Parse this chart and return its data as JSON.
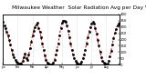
{
  "title": "Milwaukee Weather  Solar Radiation Avg per Day W/m2/minute",
  "title_fontsize": 4.2,
  "background_color": "#ffffff",
  "plot_bg_color": "#ffffff",
  "line_color": "#cc0000",
  "marker_color": "#000000",
  "grid_color": "#bbbbbb",
  "ylim": [
    0,
    400
  ],
  "xlim": [
    0,
    95
  ],
  "x_values": [
    0,
    1,
    2,
    3,
    4,
    5,
    6,
    7,
    8,
    9,
    10,
    11,
    12,
    13,
    14,
    15,
    16,
    17,
    18,
    19,
    20,
    21,
    22,
    23,
    24,
    25,
    26,
    27,
    28,
    29,
    30,
    31,
    32,
    33,
    34,
    35,
    36,
    37,
    38,
    39,
    40,
    41,
    42,
    43,
    44,
    45,
    46,
    47,
    48,
    49,
    50,
    51,
    52,
    53,
    54,
    55,
    56,
    57,
    58,
    59,
    60,
    61,
    62,
    63,
    64,
    65,
    66,
    67,
    68,
    69,
    70,
    71,
    72,
    73,
    74,
    75,
    76,
    77,
    78,
    79,
    80,
    81,
    82,
    83,
    84,
    85,
    86,
    87,
    88,
    89,
    90,
    91,
    92,
    93,
    94,
    95
  ],
  "y_values": [
    340,
    310,
    290,
    260,
    230,
    200,
    160,
    120,
    85,
    60,
    40,
    25,
    15,
    10,
    8,
    12,
    30,
    60,
    90,
    50,
    40,
    80,
    130,
    180,
    230,
    270,
    300,
    320,
    330,
    290,
    260,
    220,
    170,
    120,
    75,
    40,
    15,
    8,
    5,
    3,
    5,
    15,
    40,
    80,
    120,
    170,
    230,
    290,
    330,
    350,
    350,
    340,
    310,
    270,
    220,
    170,
    120,
    80,
    50,
    30,
    15,
    8,
    5,
    10,
    25,
    50,
    80,
    120,
    170,
    215,
    260,
    295,
    325,
    340,
    325,
    290,
    250,
    200,
    150,
    100,
    60,
    30,
    15,
    8,
    5,
    10,
    30,
    70,
    110,
    160,
    210,
    255,
    285,
    310,
    325,
    330
  ],
  "vgrid_positions": [
    0,
    12,
    24,
    36,
    48,
    60,
    72,
    84,
    95
  ],
  "yticks": [
    0,
    50,
    100,
    150,
    200,
    250,
    300,
    350,
    400
  ]
}
